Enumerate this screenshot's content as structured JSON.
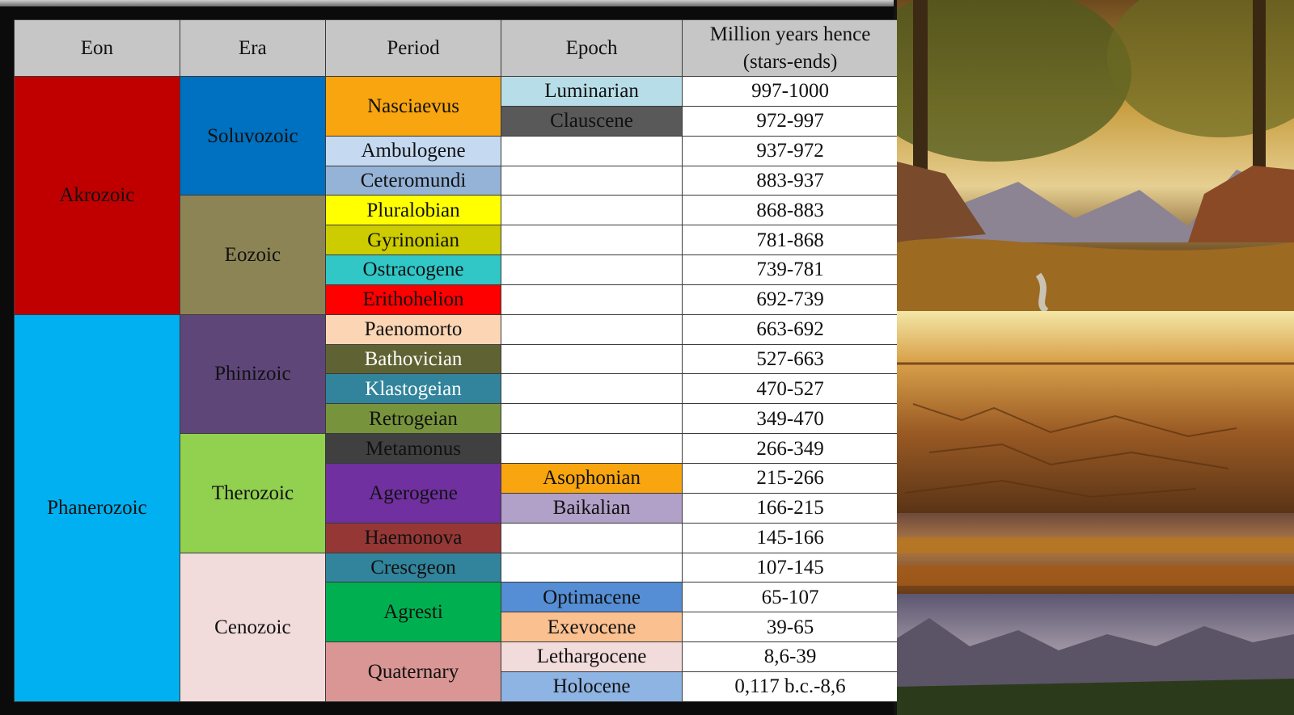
{
  "header": {
    "eon": "Eon",
    "era": "Era",
    "period": "Period",
    "epoch": "Epoch",
    "years_line1": "Million years hence",
    "years_line2": "(stars-ends)"
  },
  "eons": [
    {
      "name": "Akrozoic",
      "color": "#c00000"
    },
    {
      "name": "Phanerozoic",
      "color": "#00b0f0"
    }
  ],
  "eras": [
    {
      "name": "Soluvozoic",
      "color": "#0070c0"
    },
    {
      "name": "Eozoic",
      "color": "#8c8454"
    },
    {
      "name": "Phinizoic",
      "color": "#5e4679"
    },
    {
      "name": "Therozoic",
      "color": "#92d050"
    },
    {
      "name": "Cenozoic",
      "color": "#f2dcdb"
    }
  ],
  "periods": [
    {
      "name": "Nasciaevus",
      "color": "#f8a50f"
    },
    {
      "name": "Ambulogene",
      "color": "#c5d9f1"
    },
    {
      "name": "Ceteromundi",
      "color": "#95b3d7"
    },
    {
      "name": "Pluralobian",
      "color": "#ffff00"
    },
    {
      "name": "Gyrinonian",
      "color": "#cccc00"
    },
    {
      "name": "Ostracogene",
      "color": "#31c7c7"
    },
    {
      "name": "Erithohelion",
      "color": "#ff0000"
    },
    {
      "name": "Paenomorto",
      "color": "#fcd5b4"
    },
    {
      "name": "Bathovician",
      "color": "#5f6233"
    },
    {
      "name": "Klastogeian",
      "color": "#31849b"
    },
    {
      "name": "Retrogeian",
      "color": "#77933c"
    },
    {
      "name": "Metamonus",
      "color": "#404040"
    },
    {
      "name": "Agerogene",
      "color": "#7030a0"
    },
    {
      "name": "Haemonova",
      "color": "#953735"
    },
    {
      "name": "Crescgeon",
      "color": "#31849b"
    },
    {
      "name": "Agresti",
      "color": "#00b050"
    },
    {
      "name": "Quaternary",
      "color": "#d99694"
    }
  ],
  "epochs": [
    {
      "name": "Luminarian",
      "color": "#b7dee8"
    },
    {
      "name": "Clauscene",
      "color": "#595959"
    },
    {
      "name": "Asophonian",
      "color": "#f8a50f"
    },
    {
      "name": "Baikalian",
      "color": "#b1a0c7"
    },
    {
      "name": "Optimacene",
      "color": "#558ed5"
    },
    {
      "name": "Exevocene",
      "color": "#fac090"
    },
    {
      "name": "Lethargocene",
      "color": "#f2dcdb"
    },
    {
      "name": "Holocene",
      "color": "#8eb4e3"
    }
  ],
  "years": [
    "997-1000",
    "972-997",
    "937-972",
    "883-937",
    "868-883",
    "781-868",
    "739-781",
    "692-739",
    "663-692",
    "527-663",
    "470-527",
    "349-470",
    "266-349",
    "215-266",
    "166-215",
    "145-166",
    "107-145",
    "65-107",
    "39-65",
    "8,6-39",
    "0,117 b.c.-8,6"
  ]
}
